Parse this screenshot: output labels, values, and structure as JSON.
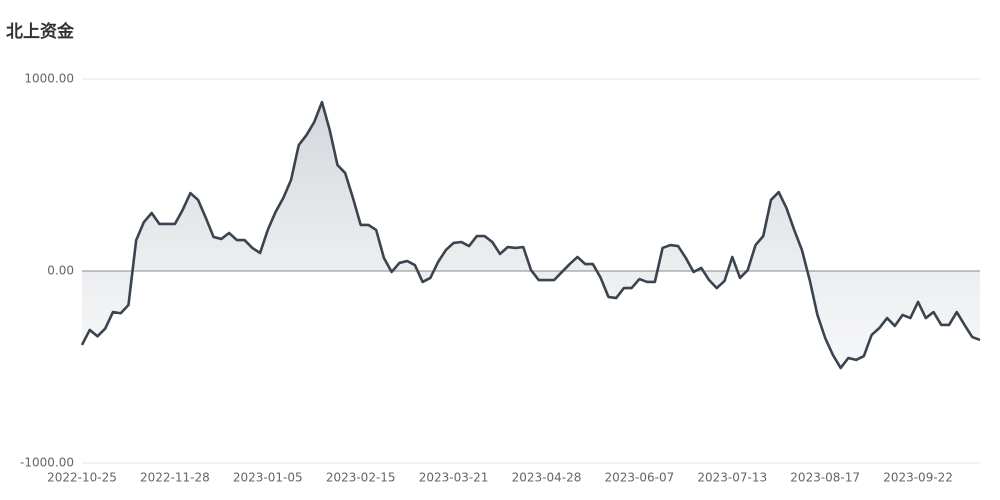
{
  "chart_data": {
    "type": "area",
    "title": "北上资金",
    "categories": [
      "2022-10-25",
      null,
      null,
      null,
      null,
      null,
      null,
      null,
      null,
      null,
      null,
      null,
      "2022-11-28",
      null,
      null,
      null,
      null,
      null,
      null,
      null,
      null,
      null,
      null,
      null,
      "2023-01-05",
      null,
      null,
      null,
      null,
      null,
      null,
      null,
      null,
      null,
      null,
      null,
      "2023-02-15",
      null,
      null,
      null,
      null,
      null,
      null,
      null,
      null,
      null,
      null,
      null,
      "2023-03-21",
      null,
      null,
      null,
      null,
      null,
      null,
      null,
      null,
      null,
      null,
      null,
      "2023-04-28",
      null,
      null,
      null,
      null,
      null,
      null,
      null,
      null,
      null,
      null,
      null,
      "2023-06-07",
      null,
      null,
      null,
      null,
      null,
      null,
      null,
      null,
      null,
      null,
      null,
      "2023-07-13",
      null,
      null,
      null,
      null,
      null,
      null,
      null,
      null,
      null,
      null,
      null,
      "2023-08-17",
      null,
      null,
      null,
      null,
      null,
      null,
      null,
      null,
      null,
      null,
      null,
      "2023-09-22",
      null,
      null,
      null,
      null,
      null,
      null,
      null,
      null
    ],
    "values": [
      -385,
      -307,
      -340,
      -300,
      -214,
      -220,
      -177,
      161,
      255,
      302,
      245,
      245,
      245,
      318,
      406,
      370,
      276,
      177,
      167,
      198,
      161,
      161,
      120,
      94,
      214,
      307,
      380,
      474,
      656,
      708,
      776,
      880,
      734,
      552,
      510,
      380,
      240,
      240,
      214,
      68,
      -5,
      42,
      52,
      31,
      -57,
      -36,
      47,
      109,
      146,
      151,
      130,
      182,
      182,
      151,
      89,
      125,
      120,
      125,
      5,
      -47,
      -47,
      -47,
      -5,
      36,
      73,
      36,
      36,
      -36,
      -135,
      -141,
      -89,
      -89,
      -42,
      -57,
      -57,
      120,
      135,
      130,
      68,
      -5,
      16,
      -47,
      -89,
      -52,
      73,
      -36,
      5,
      135,
      182,
      370,
      411,
      328,
      214,
      109,
      -47,
      -229,
      -349,
      -437,
      -505,
      -453,
      -463,
      -443,
      -333,
      -297,
      -245,
      -286,
      -229,
      -245,
      -161,
      -245,
      -214,
      -281,
      -281,
      -214,
      -281,
      -344,
      -359
    ],
    "color": "#3b4350",
    "ylim": [
      -1000,
      1000
    ],
    "yticks": [
      {
        "value": -1000,
        "label": "-1000.00"
      },
      {
        "value": 0,
        "label": "0.00"
      },
      {
        "value": 1000,
        "label": "1000.00"
      }
    ],
    "grid": true
  }
}
